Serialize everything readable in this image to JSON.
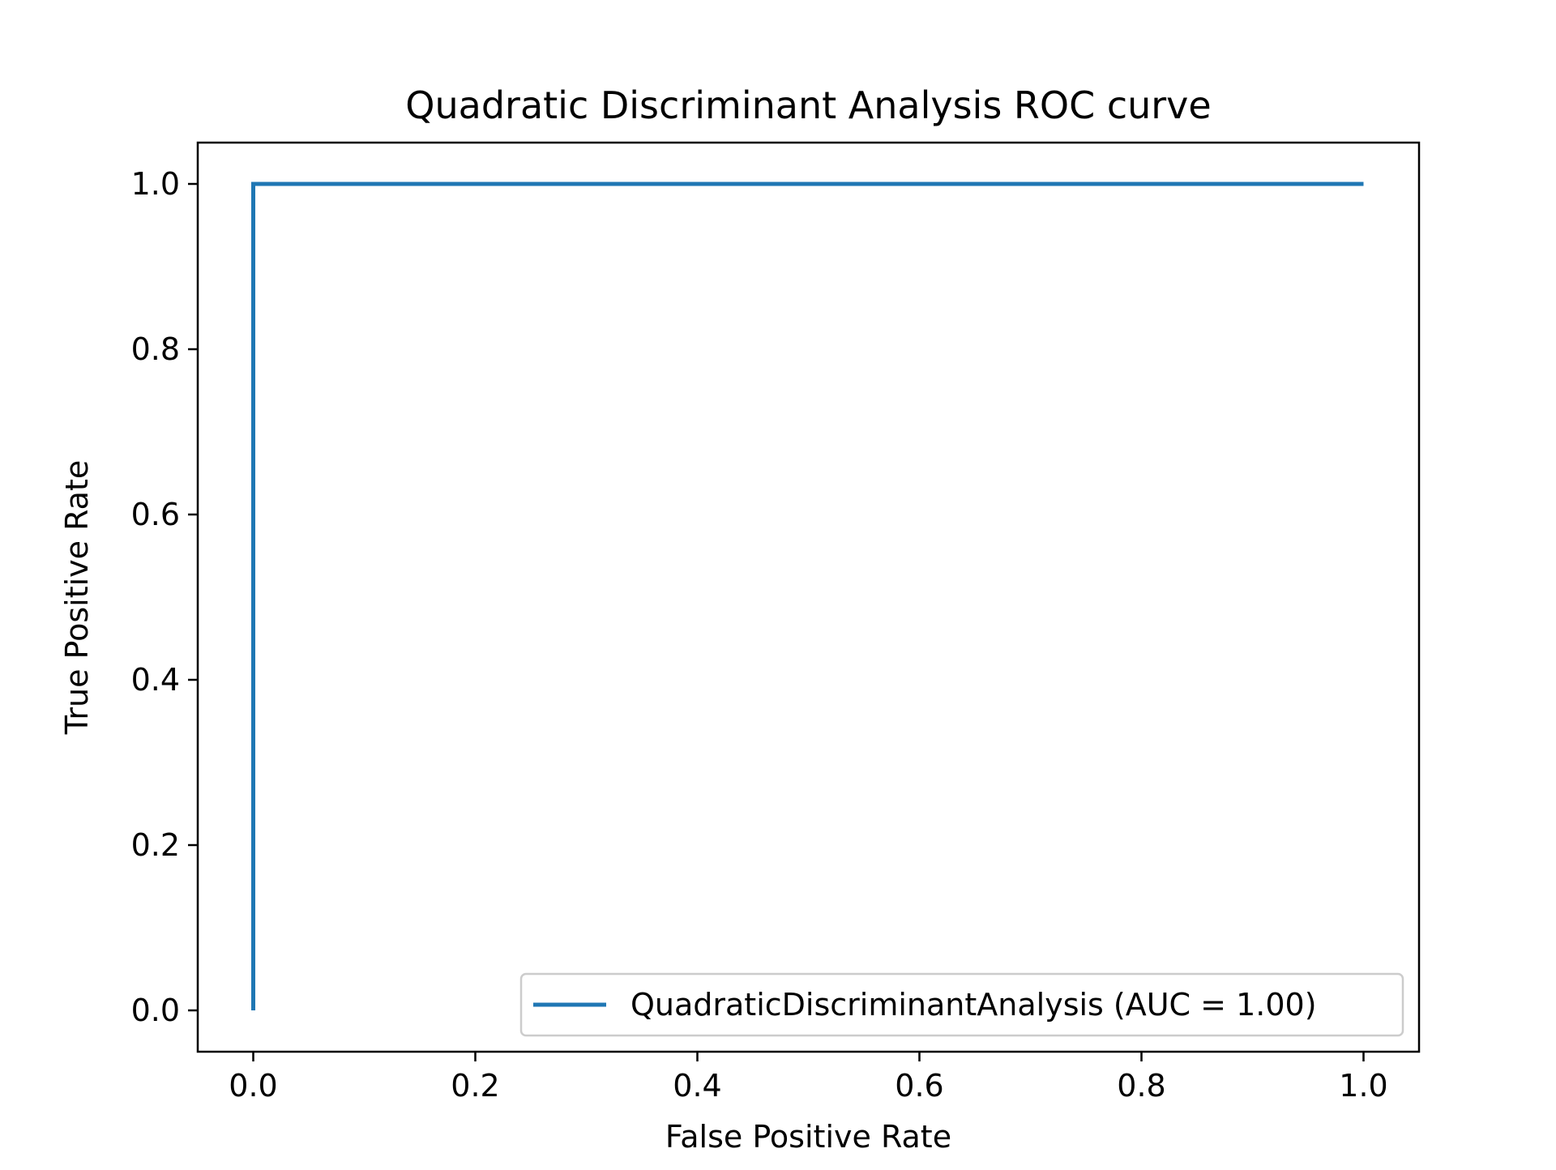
{
  "chart_data": {
    "type": "line",
    "title": "Quadratic Discriminant Analysis ROC curve",
    "xlabel": "False Positive Rate",
    "ylabel": "True Positive Rate",
    "xlim": [
      -0.05,
      1.05
    ],
    "ylim": [
      -0.05,
      1.05
    ],
    "xticks": [
      0.0,
      0.2,
      0.4,
      0.6,
      0.8,
      1.0
    ],
    "xtick_labels": [
      "0.0",
      "0.2",
      "0.4",
      "0.6",
      "0.8",
      "1.0"
    ],
    "yticks": [
      0.0,
      0.2,
      0.4,
      0.6,
      0.8,
      1.0
    ],
    "ytick_labels": [
      "0.0",
      "0.2",
      "0.4",
      "0.6",
      "0.8",
      "1.0"
    ],
    "grid": false,
    "legend_position": "lower right",
    "series": [
      {
        "name": "QuadraticDiscriminantAnalysis (AUC = 1.00)",
        "color": "#1f77b4",
        "x": [
          0.0,
          0.0,
          1.0
        ],
        "y": [
          0.0,
          1.0,
          1.0
        ]
      }
    ]
  }
}
